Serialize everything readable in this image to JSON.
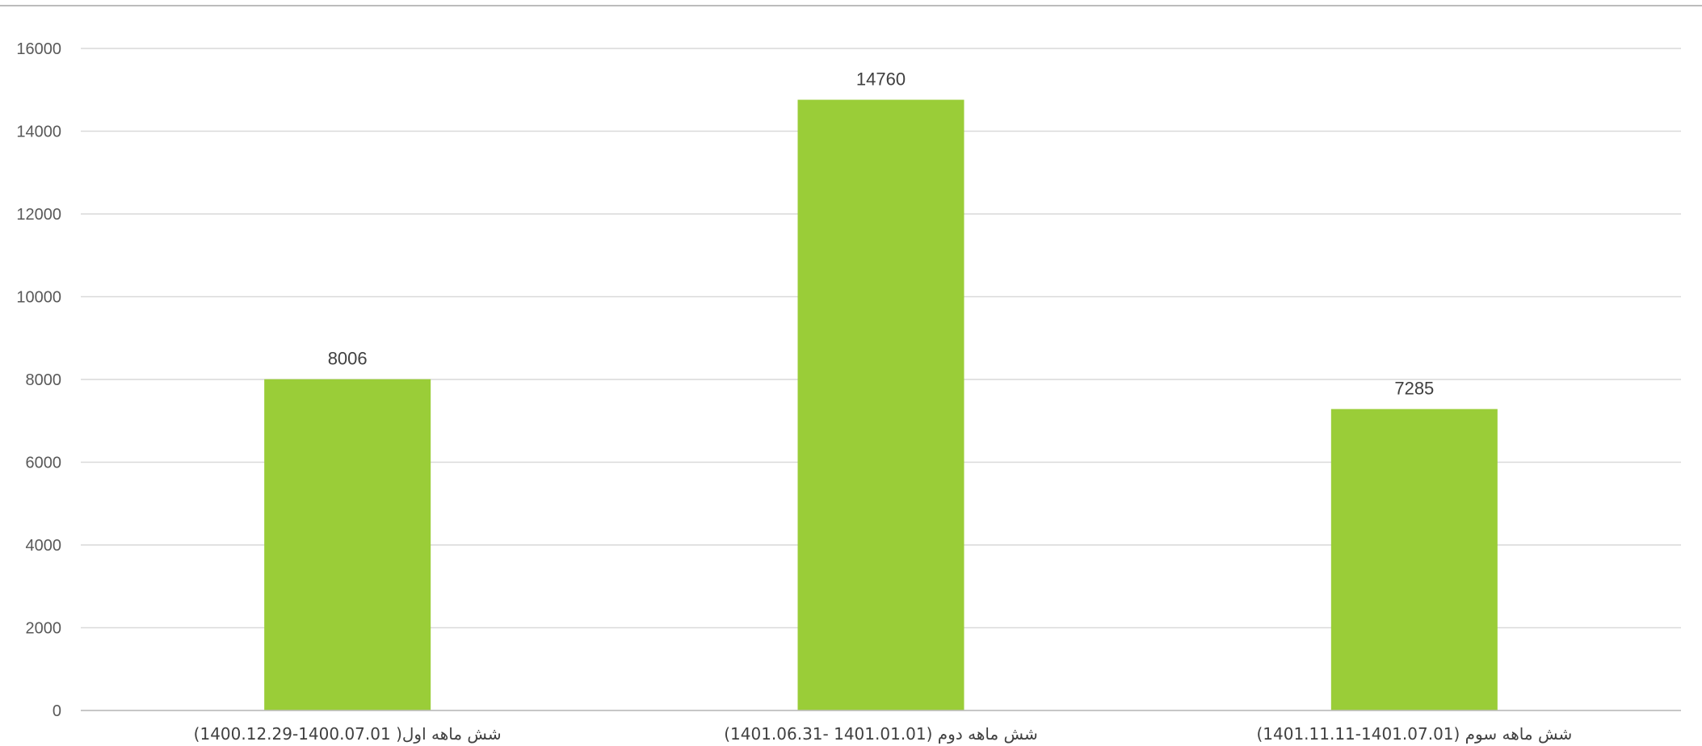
{
  "chart_data": {
    "type": "bar",
    "title": "",
    "xlabel": "",
    "ylabel": "",
    "categories": [
      "شش ماهه اول( 1400.07.01-1400.12.29)",
      "شش ماهه دوم (1401.01.01 -1401.06.31)",
      "شش ماهه سوم (1401.07.01-1401.11.11)"
    ],
    "values": [
      8006,
      14760,
      7285
    ],
    "data_labels": [
      "8006",
      "14760",
      "7285"
    ],
    "ylim": [
      0,
      16000
    ],
    "yticks": [
      "0",
      "2000",
      "4000",
      "6000",
      "8000",
      "10000",
      "12000",
      "14000",
      "16000"
    ],
    "grid": true,
    "legend": "none",
    "bar_color": "#9ACD38",
    "grid_color": "#D9D9D9",
    "axis_color": "#BFBFBF"
  }
}
